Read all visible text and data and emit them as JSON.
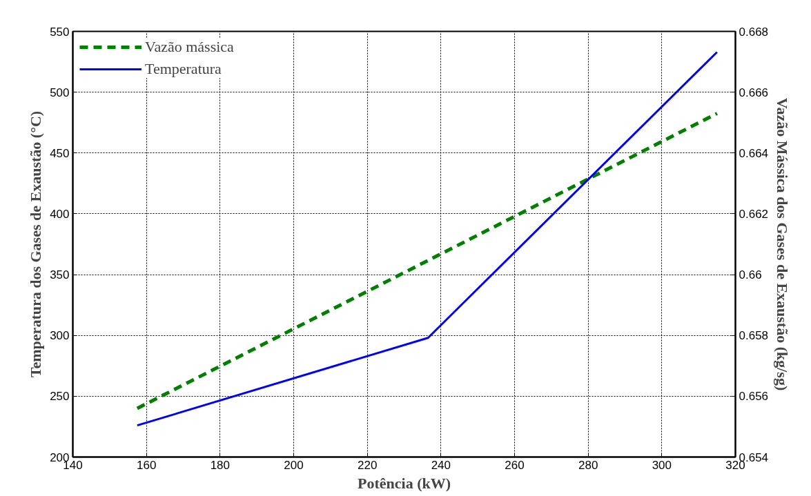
{
  "chart_data": {
    "type": "line",
    "xlabel": "Potência (kW)",
    "ylabel": "Temperatura dos Gases de Exaustão (°C)",
    "y2label": "Vazão Mássica dos Gases de Exaustão (kg/sg)",
    "xlim": [
      140,
      320
    ],
    "xticks": [
      140,
      160,
      180,
      200,
      220,
      240,
      260,
      280,
      300,
      320
    ],
    "ylim": [
      200,
      550
    ],
    "yticks": [
      200,
      250,
      300,
      350,
      400,
      450,
      500,
      550
    ],
    "y2lim": [
      0.654,
      0.668
    ],
    "y2ticks": [
      {
        "value": 0.654,
        "label": "0.654"
      },
      {
        "value": 0.656,
        "label": "0.656"
      },
      {
        "value": 0.658,
        "label": "0.658"
      },
      {
        "value": 0.66,
        "label": "0.66"
      },
      {
        "value": 0.662,
        "label": "0.662"
      },
      {
        "value": 0.664,
        "label": "0.664"
      },
      {
        "value": 0.666,
        "label": "0.666"
      },
      {
        "value": 0.668,
        "label": "0.668"
      }
    ],
    "grid": true,
    "legend": "top left",
    "series": [
      {
        "name": "Vazão mássica",
        "color": "#008000",
        "axis": "y2",
        "line_style": "dashed",
        "x": [
          157.5,
          315
        ],
        "values": [
          0.6556,
          0.6653
        ]
      },
      {
        "name": "Temperatura",
        "color": "#0000ff",
        "line_style": "solid",
        "x": [
          157.5,
          236.5,
          315
        ],
        "values": [
          226,
          298,
          533
        ]
      }
    ]
  }
}
